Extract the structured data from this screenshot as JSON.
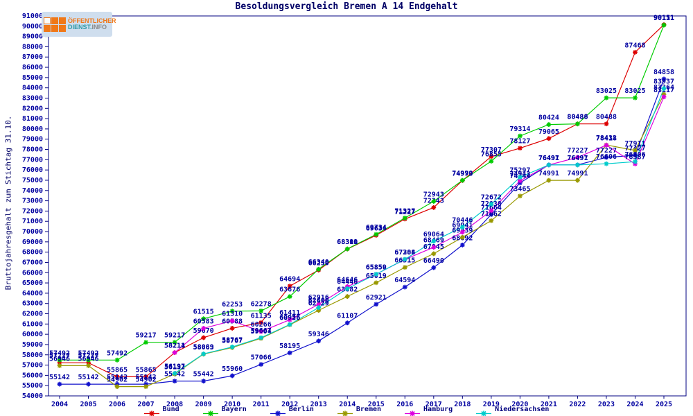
{
  "title": "Besoldungsvergleich Bremen A 14 Endgehalt",
  "y_axis_label": "Bruttojahresgehalt zum Stichtag 31.10.",
  "logo": {
    "line1": "OFFENTLICHER",
    "line1_display": "ÖFFENTLICHER",
    "line2_part1": "DIENST.",
    "line2_part2": "INFO"
  },
  "axis": {
    "color": "#000080",
    "label_color": "#0000a0",
    "y_min": 54000,
    "y_max": 91000,
    "y_step": 1000
  },
  "chart_data": {
    "type": "line",
    "title": "Besoldungsvergleich Bremen A 14 Endgehalt",
    "ylabel": "Bruttojahresgehalt zum Stichtag 31.10.",
    "xlabel": "",
    "ylim": [
      54000,
      91000
    ],
    "ytick_step": 1000,
    "grid": false,
    "legend_position": "bottom",
    "x": [
      2004,
      2005,
      2006,
      2007,
      2008,
      2009,
      2010,
      2011,
      2012,
      2013,
      2014,
      2015,
      2016,
      2017,
      2018,
      2019,
      2020,
      2021,
      2022,
      2023,
      2024,
      2025
    ],
    "series": [
      {
        "name": "Bund",
        "color": "#dd0000",
        "values": [
          57227,
          57227,
          55865,
          55865,
          58211,
          59670,
          60588,
          61135,
          64694,
          66250,
          68300,
          69634,
          71227,
          72343,
          74973,
          77307,
          78127,
          79065,
          80488,
          80488,
          87468,
          90151
        ]
      },
      {
        "name": "Bayern",
        "color": "#00cc00",
        "values": [
          57492,
          57492,
          57492,
          59217,
          59217,
          61515,
          62253,
          62278,
          63676,
          66340,
          68311,
          69734,
          71327,
          72943,
          74990,
          76855,
          79314,
          80424,
          80486,
          83025,
          83025,
          90111
        ]
      },
      {
        "name": "Berlin",
        "color": "#1111cc",
        "values": [
          55142,
          55142,
          55142,
          55142,
          55442,
          55442,
          55960,
          57066,
          58195,
          59346,
          61107,
          62921,
          64594,
          66490,
          68692,
          71664,
          74744,
          76497,
          76497,
          77227,
          77427,
          84858
        ]
      },
      {
        "name": "Bremen",
        "color": "#999900",
        "values": [
          56946,
          56946,
          54902,
          54902,
          56132,
          58063,
          58707,
          59604,
          60926,
          62329,
          63682,
          65019,
          66515,
          67845,
          69439,
          71062,
          73465,
          74991,
          74991,
          78432,
          77911,
          83364
        ]
      },
      {
        "name": "Hamburg",
        "color": "#dd00dd",
        "values": [
          null,
          null,
          null,
          null,
          58214,
          60583,
          61310,
          60266,
          61411,
          62916,
          64646,
          65850,
          67288,
          68469,
          69941,
          72038,
          74943,
          76491,
          77227,
          78418,
          76587,
          83117
        ]
      },
      {
        "name": "Niedersachsen",
        "color": "#00cccc",
        "values": [
          null,
          null,
          null,
          null,
          56197,
          58089,
          58767,
          59667,
          60956,
          62600,
          64446,
          65859,
          67304,
          69064,
          70446,
          72672,
          75297,
          76491,
          76491,
          76606,
          76806,
          83937
        ]
      }
    ]
  }
}
